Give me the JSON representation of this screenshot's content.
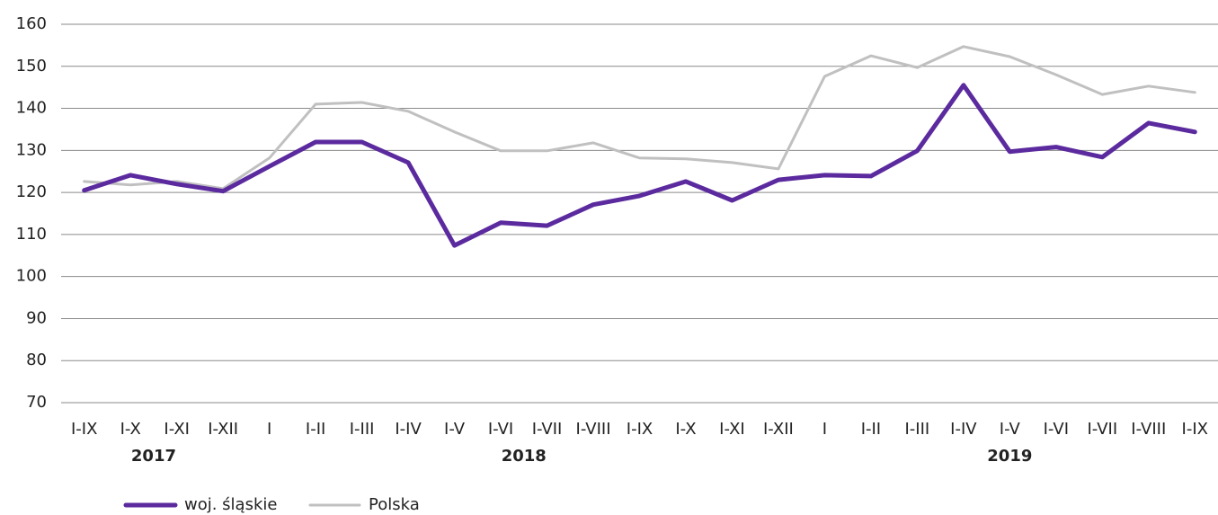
{
  "chart_data": {
    "type": "line",
    "categories": [
      "I-IX",
      "I-X",
      "I-XI",
      "I-XII",
      "I",
      "I-II",
      "I-III",
      "I-IV",
      "I-V",
      "I-VI",
      "I-VII",
      "I-VIII",
      "I-IX",
      "I-X",
      "I-XI",
      "I-XII",
      "I",
      "I-II",
      "I-III",
      "I-IV",
      "I-V",
      "I-VI",
      "I-VII",
      "I-VIII",
      "I-IX"
    ],
    "x_groups": [
      {
        "label": "2017",
        "count": 4
      },
      {
        "label": "2018",
        "count": 12
      },
      {
        "label": "2019",
        "count": 9
      }
    ],
    "series": [
      {
        "name": "woj. śląskie",
        "color": "#5b2a9e",
        "values": [
          120.5,
          124.1,
          122,
          120.3,
          126.2,
          132,
          132,
          127.1,
          107.4,
          112.8,
          112.1,
          117.1,
          119.2,
          122.6,
          118.1,
          123,
          124.1,
          123.9,
          129.9,
          145.5,
          129.7,
          130.8,
          128.4,
          136.5,
          134.4
        ]
      },
      {
        "name": "Polska",
        "color": "#c0c0c0",
        "values": [
          122.6,
          121.8,
          122.6,
          120.9,
          128.2,
          141,
          141.4,
          139.3,
          134.4,
          129.9,
          129.9,
          131.8,
          128.2,
          128,
          127.1,
          125.6,
          147.6,
          152.5,
          149.7,
          154.7,
          152.3,
          148,
          143.3,
          145.3,
          143.8
        ]
      }
    ],
    "ylim": [
      70,
      160
    ],
    "yticks": [
      70,
      80,
      90,
      100,
      110,
      120,
      130,
      140,
      150,
      160
    ],
    "grid": true,
    "legend": "bottom-left"
  }
}
